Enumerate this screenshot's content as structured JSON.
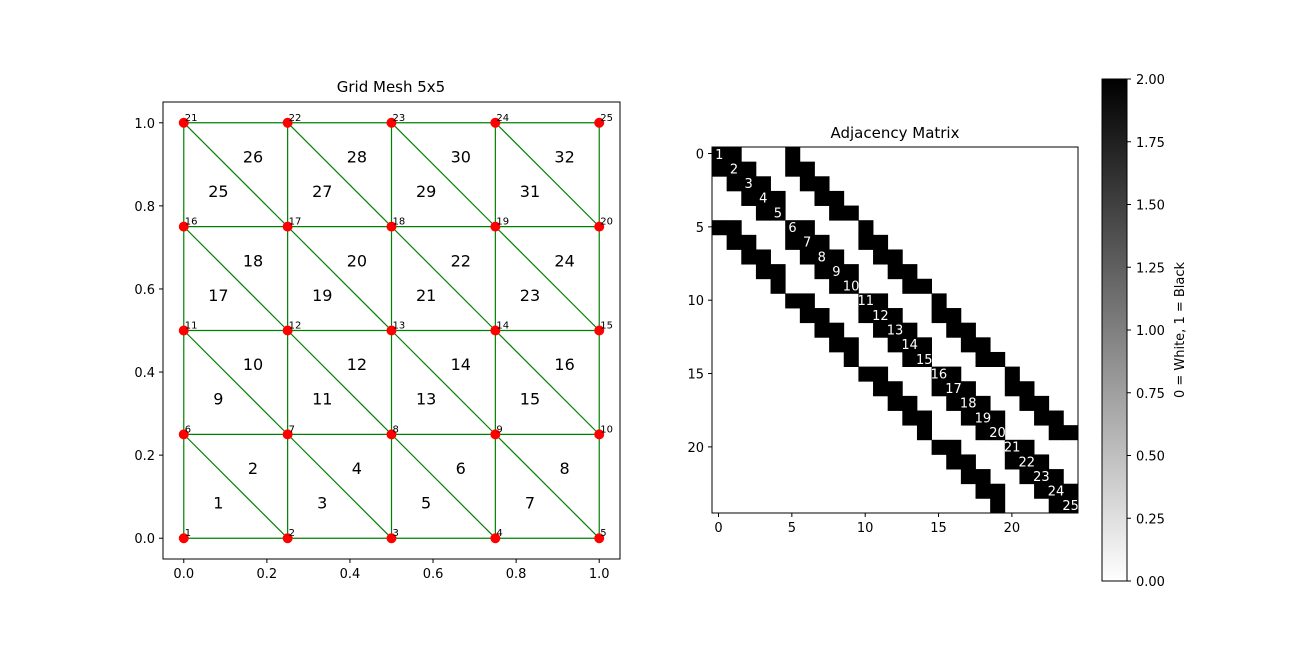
{
  "chart_data": [
    {
      "type": "scatter",
      "title": "Grid Mesh 5x5",
      "xlabel": "",
      "ylabel": "",
      "xlim": [
        -0.05,
        1.05
      ],
      "ylim": [
        -0.05,
        1.05
      ],
      "xticks": [
        "0.0",
        "0.2",
        "0.4",
        "0.6",
        "0.8",
        "1.0"
      ],
      "yticks": [
        "0.0",
        "0.2",
        "0.4",
        "0.6",
        "0.8",
        "1.0"
      ],
      "grid_size": 5,
      "node_coords": [
        0.0,
        0.25,
        0.5,
        0.75,
        1.0
      ],
      "node_labels": [
        "1",
        "2",
        "3",
        "4",
        "5",
        "6",
        "7",
        "8",
        "9",
        "10",
        "11",
        "12",
        "13",
        "14",
        "15",
        "16",
        "17",
        "18",
        "19",
        "20",
        "21",
        "22",
        "23",
        "24",
        "25"
      ],
      "element_labels": [
        "1",
        "2",
        "3",
        "4",
        "5",
        "6",
        "7",
        "8",
        "9",
        "10",
        "11",
        "12",
        "13",
        "14",
        "15",
        "16",
        "17",
        "18",
        "19",
        "20",
        "21",
        "22",
        "23",
        "24",
        "25",
        "26",
        "27",
        "28",
        "29",
        "30",
        "31",
        "32"
      ],
      "node_color": "#ff0000",
      "edge_color": "#008000"
    },
    {
      "type": "heatmap",
      "title": "Adjacency Matrix",
      "size": 25,
      "grid_cols": 5,
      "xticks": [
        "0",
        "5",
        "10",
        "15",
        "20"
      ],
      "yticks": [
        "0",
        "5",
        "10",
        "15",
        "20"
      ],
      "diagonal_labels": [
        "1",
        "2",
        "3",
        "4",
        "5",
        "6",
        "7",
        "8",
        "9",
        "10",
        "11",
        "12",
        "13",
        "14",
        "15",
        "16",
        "17",
        "18",
        "19",
        "20",
        "21",
        "22",
        "23",
        "24",
        "25"
      ],
      "colormap": "gray_r",
      "colorbar": {
        "label": "0 = White, 1 = Black",
        "range": [
          0,
          2
        ],
        "ticks": [
          "0.00",
          "0.25",
          "0.50",
          "0.75",
          "1.00",
          "1.25",
          "1.50",
          "1.75",
          "2.00"
        ]
      }
    }
  ]
}
